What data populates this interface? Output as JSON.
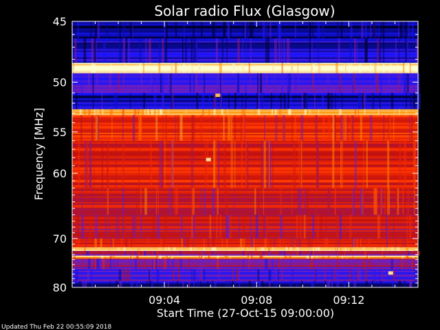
{
  "chart_data": {
    "type": "heatmap",
    "title": "Solar radio Flux (Glasgow)",
    "xlabel": "Start Time (27-Oct-15 09:00:00)",
    "ylabel": "Frequency [MHz]",
    "x_unit": "minutes after start",
    "xlim": [
      0,
      15
    ],
    "ylim": [
      45,
      80
    ],
    "y_scale": "reciprocal",
    "x_ticks": [
      {
        "value": 4,
        "label": "09:04"
      },
      {
        "value": 8,
        "label": "09:08"
      },
      {
        "value": 12,
        "label": "09:12"
      }
    ],
    "y_ticks": [
      {
        "value": 45,
        "label": "45"
      },
      {
        "value": 50,
        "label": "50"
      },
      {
        "value": 55,
        "label": "55"
      },
      {
        "value": 60,
        "label": "60"
      },
      {
        "value": 70,
        "label": "70"
      },
      {
        "value": 80,
        "label": "80"
      }
    ],
    "intensity_bands": [
      {
        "f0": 45.0,
        "f1": 46.3,
        "level": 0.05
      },
      {
        "f0": 46.3,
        "f1": 48.3,
        "level": 0.15
      },
      {
        "f0": 48.3,
        "f1": 49.2,
        "level": 1.0
      },
      {
        "f0": 49.2,
        "f1": 51.0,
        "level": 0.25
      },
      {
        "f0": 51.0,
        "f1": 52.6,
        "level": 0.12
      },
      {
        "f0": 52.6,
        "f1": 53.2,
        "level": 0.92
      },
      {
        "f0": 53.2,
        "f1": 56.0,
        "level": 0.62
      },
      {
        "f0": 56.0,
        "f1": 62.0,
        "level": 0.58
      },
      {
        "f0": 62.0,
        "f1": 66.0,
        "level": 0.55
      },
      {
        "f0": 66.0,
        "f1": 70.0,
        "level": 0.5
      },
      {
        "f0": 70.0,
        "f1": 71.6,
        "level": 0.58
      },
      {
        "f0": 71.6,
        "f1": 72.3,
        "level": 0.98
      },
      {
        "f0": 72.3,
        "f1": 73.2,
        "level": 0.4
      },
      {
        "f0": 73.2,
        "f1": 73.8,
        "level": 0.85
      },
      {
        "f0": 73.8,
        "f1": 76.0,
        "level": 0.38
      },
      {
        "f0": 76.0,
        "f1": 78.5,
        "level": 0.28
      },
      {
        "f0": 78.5,
        "f1": 80.0,
        "level": 0.12
      }
    ],
    "bright_spots": [
      {
        "t": 5.9,
        "f": 58.2,
        "level": 0.95
      },
      {
        "t": 6.3,
        "f": 51.2,
        "level": 0.9
      },
      {
        "t": 13.8,
        "f": 76.7,
        "level": 0.95
      }
    ]
  },
  "footer": {
    "updated": "Updated Thu Feb 22 00:55:09 2018"
  },
  "colors": {
    "background": "#000000",
    "text": "#ffffff",
    "colormap": [
      "#000030",
      "#1414ff",
      "#7020c0",
      "#c01010",
      "#ff3000",
      "#ff9000",
      "#ffffd0"
    ]
  }
}
